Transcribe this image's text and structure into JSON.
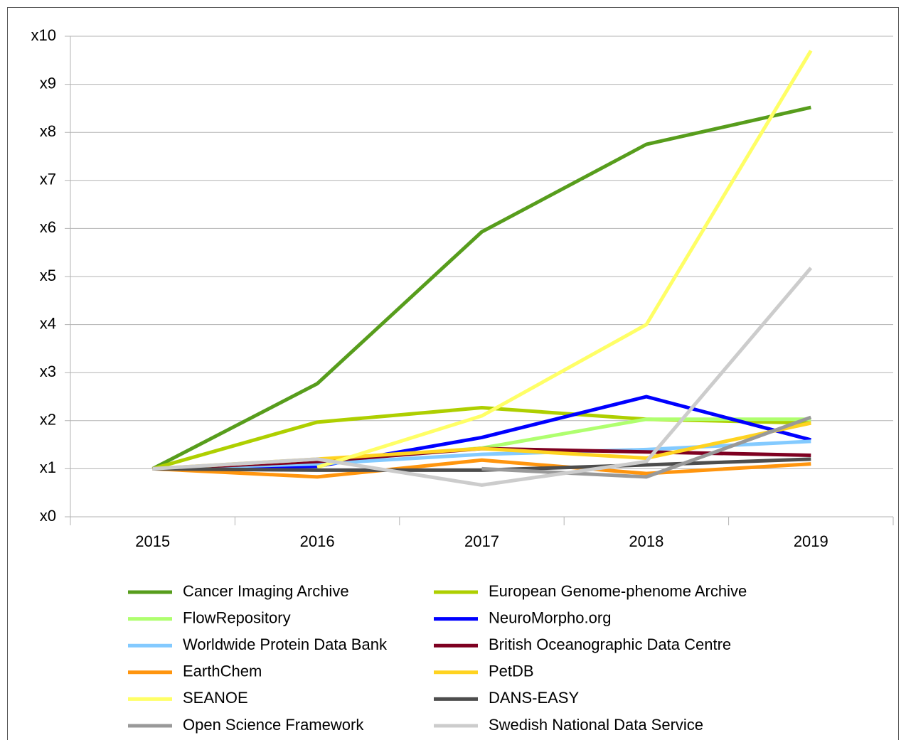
{
  "chart_data": {
    "type": "line",
    "categories": [
      "2015",
      "2016",
      "2017",
      "2018",
      "2019"
    ],
    "ylim": [
      0,
      10
    ],
    "yticks": [
      {
        "value": 0,
        "label": "x0"
      },
      {
        "value": 1,
        "label": "x1"
      },
      {
        "value": 2,
        "label": "x2"
      },
      {
        "value": 3,
        "label": "x3"
      },
      {
        "value": 4,
        "label": "x4"
      },
      {
        "value": 5,
        "label": "x5"
      },
      {
        "value": 6,
        "label": "x6"
      },
      {
        "value": 7,
        "label": "x7"
      },
      {
        "value": 8,
        "label": "x8"
      },
      {
        "value": 9,
        "label": "x9"
      },
      {
        "value": 10,
        "label": "x10"
      }
    ],
    "grid": true,
    "legend": "bottom",
    "series": [
      {
        "name": "Cancer Imaging Archive",
        "color": "#579d1c",
        "values": [
          1,
          2.77,
          5.93,
          7.75,
          8.52
        ]
      },
      {
        "name": "European Genome-phenome Archive",
        "color": "#aecf00",
        "values": [
          1,
          1.97,
          2.27,
          2.03,
          1.95
        ]
      },
      {
        "name": "FlowRepository",
        "color": "#afff6f",
        "values": [
          1,
          1.15,
          1.43,
          2.03,
          2.03
        ]
      },
      {
        "name": "NeuroMorpho.org",
        "color": "#0000ff",
        "values": [
          1,
          1.05,
          1.65,
          2.5,
          1.6
        ]
      },
      {
        "name": "Worldwide Protein Data Bank",
        "color": "#83caff",
        "values": [
          1,
          1.1,
          1.3,
          1.4,
          1.57
        ]
      },
      {
        "name": "British Oceanographic Data Centre",
        "color": "#7e0021",
        "values": [
          1,
          1.15,
          1.42,
          1.35,
          1.28
        ]
      },
      {
        "name": "EarthChem",
        "color": "#ff950e",
        "values": [
          1,
          0.83,
          1.18,
          0.9,
          1.1
        ]
      },
      {
        "name": "PetDB",
        "color": "#ffd320",
        "values": [
          1,
          1.2,
          1.42,
          1.22,
          1.95
        ]
      },
      {
        "name": "SEANOE",
        "color": "#ffff66",
        "values": [
          null,
          1.03,
          2.1,
          4.0,
          9.7
        ]
      },
      {
        "name": "DANS-EASY",
        "color": "#4d4d4d",
        "values": [
          1,
          0.97,
          0.97,
          1.08,
          1.2
        ]
      },
      {
        "name": "Open Science Framework",
        "color": "#999999",
        "values": [
          null,
          null,
          1.0,
          0.83,
          2.07
        ]
      },
      {
        "name": "Swedish National Data Service",
        "color": "#cccccc",
        "values": [
          1,
          1.2,
          0.66,
          1.15,
          5.18
        ]
      }
    ]
  }
}
